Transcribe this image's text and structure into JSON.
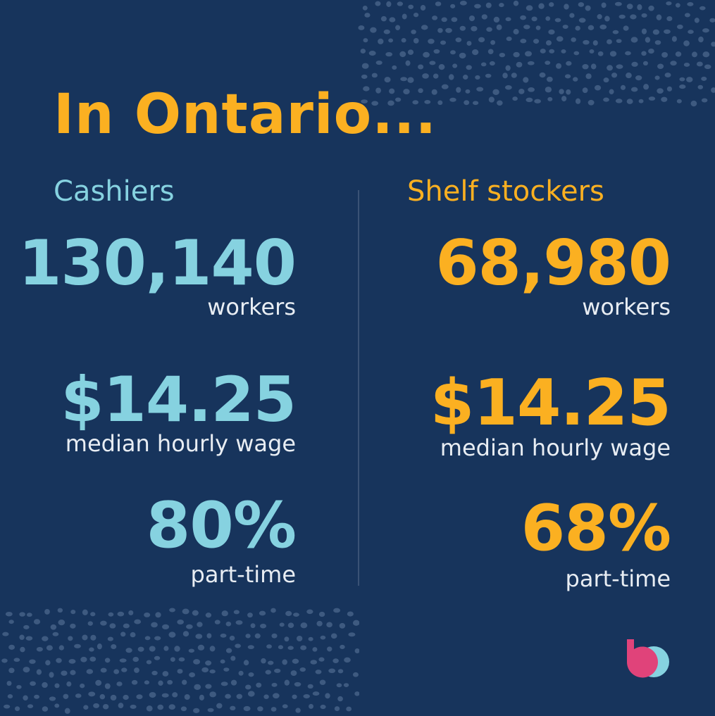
{
  "title": "In Ontario...",
  "colors": {
    "background": "#17345c",
    "accent_gold": "#fbb021",
    "accent_cyan": "#86d2e0",
    "label_text": "#e8edf3",
    "logo_pink": "#e0437a",
    "logo_blue": "#86d2e0"
  },
  "left": {
    "heading": "Cashiers",
    "workers_value": "130,140",
    "workers_label": "workers",
    "wage_value": "$14.25",
    "wage_label": "median hourly wage",
    "parttime_value": "80%",
    "parttime_label": "part-time"
  },
  "right": {
    "heading": "Shelf stockers",
    "workers_value": "68,980",
    "workers_label": "workers",
    "wage_value": "$14.25",
    "wage_label": "median hourly wage",
    "parttime_value": "68%",
    "parttime_label": "part-time"
  },
  "logo": {
    "icon": "brand-logo-icon"
  }
}
